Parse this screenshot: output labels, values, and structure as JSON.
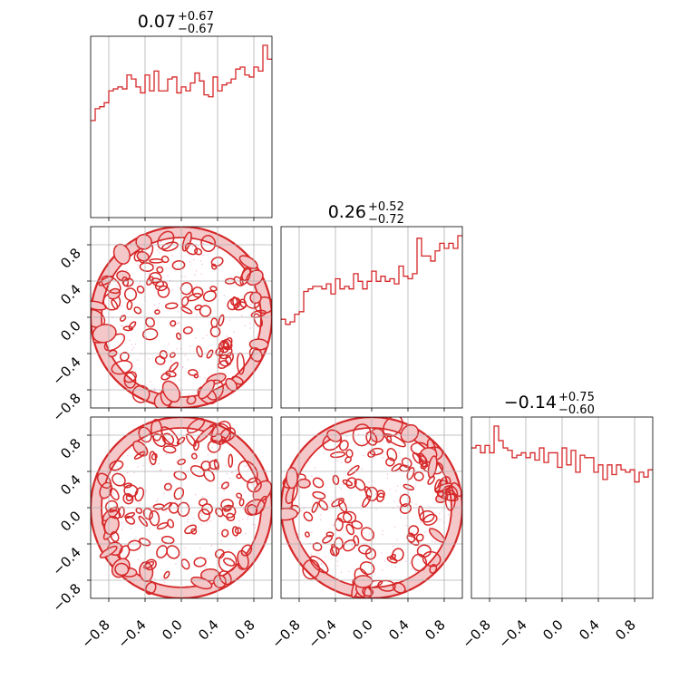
{
  "chart_data": {
    "type": "corner",
    "color": "#d62728",
    "fill_color": "#f4c7c9",
    "scatter_color": "#e377c2",
    "grid_color": "#b0b0b0",
    "grid": true,
    "range": [
      -1.0,
      1.0
    ],
    "ticks": [
      -0.8,
      -0.4,
      0.0,
      0.4,
      0.8
    ],
    "tick_labels": [
      "−0.8",
      "−0.4",
      "0.0",
      "0.4",
      "0.8"
    ],
    "titles": [
      {
        "main": "0.07",
        "upper": "+0.67",
        "lower": "−0.67"
      },
      {
        "main": "0.26",
        "upper": "+0.52",
        "lower": "−0.72"
      },
      {
        "main": "−0.14",
        "upper": "+0.75",
        "lower": "−0.60"
      }
    ],
    "histograms": [
      {
        "name": "",
        "bin_edges_start": -1.0,
        "bin_width": 0.05,
        "counts": [
          49,
          55,
          56,
          58,
          64,
          65,
          66,
          65,
          72,
          70,
          66,
          63,
          72,
          64,
          74,
          64,
          64,
          70,
          71,
          63,
          66,
          64,
          68,
          73,
          69,
          62,
          61,
          71,
          64,
          67,
          68,
          70,
          75,
          76,
          72,
          71,
          76,
          74,
          87,
          80
        ]
      },
      {
        "name": "",
        "bin_edges_start": -1.0,
        "bin_width": 0.05,
        "counts": [
          35,
          33,
          34,
          37,
          38,
          46,
          47,
          48,
          48,
          47,
          49,
          45,
          51,
          47,
          48,
          47,
          53,
          50,
          47,
          50,
          54,
          50,
          52,
          50,
          51,
          49,
          56,
          52,
          51,
          53,
          67,
          60,
          60,
          58,
          62,
          65,
          63,
          65,
          63,
          68
        ]
      },
      {
        "name": "",
        "bin_edges_start": -1.0,
        "bin_width": 0.05,
        "counts": [
          62,
          63,
          60,
          63,
          60,
          71,
          65,
          62,
          61,
          58,
          59,
          60,
          58,
          60,
          57,
          62,
          56,
          60,
          60,
          54,
          62,
          55,
          61,
          52,
          59,
          58,
          58,
          52,
          55,
          49,
          55,
          51,
          55,
          53,
          52,
          53,
          48,
          52,
          50,
          53
        ]
      }
    ],
    "pairs": [
      {
        "x_param": 0,
        "y_param": 1
      },
      {
        "x_param": 0,
        "y_param": 2
      },
      {
        "x_param": 1,
        "y_param": 2
      }
    ]
  }
}
